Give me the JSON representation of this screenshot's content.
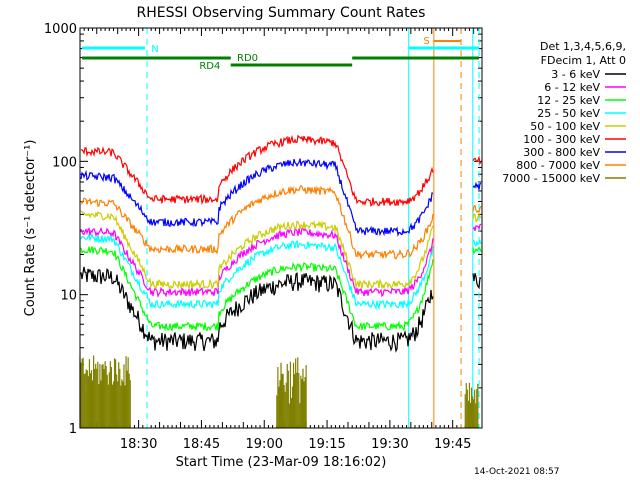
{
  "chart_data": {
    "type": "line",
    "title": "RHESSI Observing Summary Count Rates",
    "xlabel": "Start Time (23-Mar-09 18:16:02)",
    "ylabel": "Count Rate (s⁻¹ detector⁻¹)",
    "yscale": "log",
    "ylim": [
      1,
      1000
    ],
    "xlim_minutes": [
      0,
      96
    ],
    "x_tick_labels": [
      "18:30",
      "18:45",
      "19:00",
      "19:15",
      "19:30",
      "19:45"
    ],
    "x_tick_minutes": [
      14,
      29,
      44,
      59,
      74,
      89
    ],
    "y_tick_labels": [
      "1",
      "10",
      "100",
      "1000"
    ],
    "y_tick_values": [
      1,
      10,
      100,
      1000
    ],
    "timestamp": "14-Oct-2021 08:57",
    "legend_header": [
      "Det 1,3,4,5,6,9,",
      "FDecim 1, Att 0"
    ],
    "flags": [
      {
        "label": "N",
        "color": "#00ffff"
      },
      {
        "label": "RD0",
        "color": "#008000"
      },
      {
        "label": "RD4",
        "color": "#008000"
      },
      {
        "label": "S",
        "color": "#ff8000"
      }
    ],
    "vertical_lines": [
      {
        "x": 16,
        "color": "#00ffff",
        "style": "dashed"
      },
      {
        "x": 78.5,
        "color": "#00ffff",
        "style": "solid"
      },
      {
        "x": 84.5,
        "color": "#ff8000",
        "style": "solid"
      },
      {
        "x": 91,
        "color": "#ff8000",
        "style": "dashed"
      },
      {
        "x": 93.8,
        "color": "#00ffff",
        "style": "solid"
      },
      {
        "x": 95.3,
        "color": "#00ffff",
        "style": "dashed"
      }
    ],
    "series": [
      {
        "name": "3 - 6 keV",
        "color": "#000000",
        "base": 14,
        "plateau": 4.5,
        "level_b": 4.5,
        "pre": 12,
        "post": 13
      },
      {
        "name": "6 - 12 keV",
        "color": "#ff00ff",
        "base": 30,
        "plateau": 10.5,
        "level_b": 10.5,
        "pre": 26,
        "post": 32
      },
      {
        "name": "12 - 25 keV",
        "color": "#00ff00",
        "base": 22,
        "plateau": 5.8,
        "level_b": 5.8,
        "pre": 20,
        "post": 22
      },
      {
        "name": "25 - 50 keV",
        "color": "#00ffff",
        "base": 27,
        "plateau": 8.5,
        "level_b": 8.5,
        "pre": 23,
        "post": 24
      },
      {
        "name": "50 - 100 keV",
        "color": "#cccc00",
        "base": 40,
        "plateau": 12,
        "level_b": 12,
        "pre": 34,
        "post": 38
      },
      {
        "name": "100 - 300 keV",
        "color": "#ff0000",
        "base": 120,
        "plateau": 52,
        "level_b": 50,
        "pre": 90,
        "post": 100
      },
      {
        "name": "300 - 800 keV",
        "color": "#0000ff",
        "base": 78,
        "plateau": 35,
        "level_b": 30,
        "pre": 60,
        "post": 65
      },
      {
        "name": "800 - 7000 keV",
        "color": "#ff8000",
        "base": 50,
        "plateau": 22,
        "level_b": 20,
        "pre": 40,
        "post": 44
      },
      {
        "name": "7000 - 15000 keV",
        "color": "#808000",
        "base": 0,
        "plateau": 0,
        "level_b": 0,
        "pre": 0,
        "post": 0
      }
    ]
  }
}
